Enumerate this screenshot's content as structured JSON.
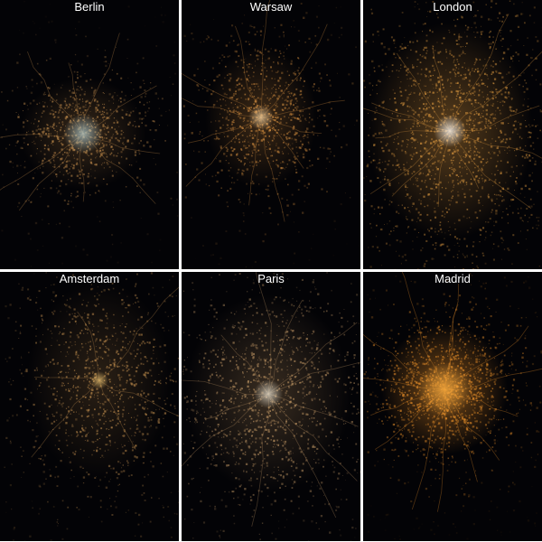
{
  "panels": [
    {
      "city": "Berlin",
      "light_color": "#c08a4a",
      "core_color": "#a9c4c8"
    },
    {
      "city": "Warsaw",
      "light_color": "#c8863c",
      "core_color": "#f0d0a0"
    },
    {
      "city": "London",
      "light_color": "#d0903c",
      "core_color": "#ffffff"
    },
    {
      "city": "Amsterdam",
      "light_color": "#b8874a",
      "core_color": "#e8c070"
    },
    {
      "city": "Paris",
      "light_color": "#b89060",
      "core_color": "#e6e0d0"
    },
    {
      "city": "Madrid",
      "light_color": "#e08a28",
      "core_color": "#ffb040"
    }
  ]
}
